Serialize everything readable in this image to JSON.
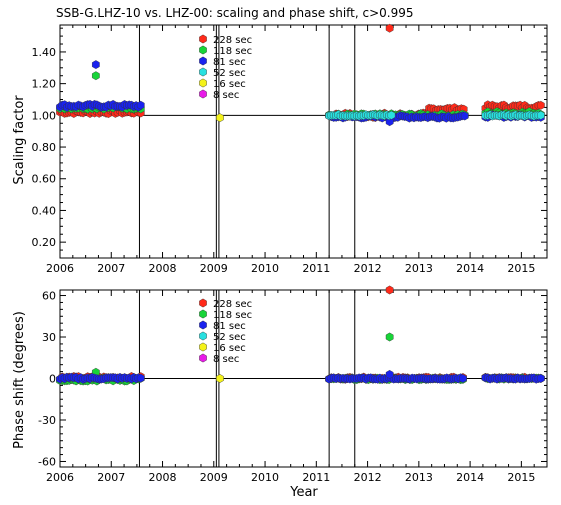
{
  "chart_data": [
    {
      "type": "scatter",
      "title": "SSB-G.LHZ-10 vs. LHZ-00: scaling and phase shift, c>0.995",
      "xlabel": "",
      "ylabel": "Scaling factor",
      "xlim": [
        2006,
        2015.5
      ],
      "ylim": [
        0.1,
        1.57
      ],
      "yticks": [
        "1.40",
        "1.20",
        "1.00",
        "0.80",
        "0.60",
        "0.40",
        "0.20"
      ],
      "ytick_values": [
        1.4,
        1.2,
        1.0,
        0.8,
        0.6,
        0.4,
        0.2
      ],
      "xticks": [
        "2006",
        "2007",
        "2008",
        "2009",
        "2010",
        "2011",
        "2012",
        "2013",
        "2014",
        "2015"
      ],
      "reference_line": 1.0,
      "vertical_lines": [
        2007.55,
        2009.05,
        2009.1,
        2011.25,
        2011.75
      ],
      "segments": [
        {
          "name": "228 sec",
          "color": "#ff2a1a",
          "ranges": [
            [
              2006.0,
              2007.6,
              1.02,
              0.01
            ],
            [
              2011.25,
              2012.4,
              1.0,
              0.015
            ],
            [
              2012.5,
              2013.2,
              1.0,
              0.015
            ],
            [
              2013.2,
              2013.9,
              1.04,
              0.01
            ],
            [
              2014.3,
              2015.4,
              1.055,
              0.012
            ]
          ],
          "points": [
            [
              2012.43,
              1.55
            ]
          ]
        },
        {
          "name": "118 sec",
          "color": "#18d438",
          "ranges": [
            [
              2006.0,
              2007.6,
              1.05,
              0.01
            ],
            [
              2011.25,
              2012.5,
              1.0,
              0.01
            ],
            [
              2012.5,
              2013.9,
              1.0,
              0.01
            ],
            [
              2014.3,
              2015.4,
              1.015,
              0.01
            ]
          ],
          "points": [
            [
              2006.7,
              1.25
            ]
          ]
        },
        {
          "name": "81 sec",
          "color": "#1a22ee",
          "ranges": [
            [
              2006.0,
              2007.6,
              1.06,
              0.01
            ],
            [
              2011.25,
              2012.5,
              0.99,
              0.008
            ],
            [
              2012.5,
              2013.9,
              0.99,
              0.008
            ],
            [
              2014.3,
              2015.4,
              0.995,
              0.008
            ]
          ],
          "points": [
            [
              2006.7,
              1.32
            ],
            [
              2012.43,
              0.96
            ]
          ]
        },
        {
          "name": "52 sec",
          "color": "#28e0e0",
          "ranges": [
            [
              2011.25,
              2012.5,
              1.0,
              0.005
            ],
            [
              2014.3,
              2015.4,
              1.0,
              0.005
            ]
          ],
          "points": []
        },
        {
          "name": "16 sec",
          "color": "#f4f21a",
          "ranges": [],
          "points": [
            [
              2009.12,
              0.985
            ]
          ]
        },
        {
          "name": "8 sec",
          "color": "#e81ae8",
          "ranges": [],
          "points": []
        }
      ]
    },
    {
      "type": "scatter",
      "title": "",
      "xlabel": "Year",
      "ylabel": "Phase shift (degrees)",
      "xlim": [
        2006,
        2015.5
      ],
      "ylim": [
        -64,
        64
      ],
      "yticks": [
        "60",
        "30",
        "0",
        "-30",
        "-60"
      ],
      "ytick_values": [
        60,
        30,
        0,
        -30,
        -60
      ],
      "xticks": [
        "2006",
        "2007",
        "2008",
        "2009",
        "2010",
        "2011",
        "2012",
        "2013",
        "2014",
        "2015"
      ],
      "reference_line": 0,
      "vertical_lines": [
        2007.55,
        2009.05,
        2009.1,
        2011.25,
        2011.75
      ],
      "segments": [
        {
          "name": "228 sec",
          "color": "#ff2a1a",
          "ranges": [
            [
              2006.0,
              2007.6,
              0.5,
              1.0
            ],
            [
              2011.25,
              2013.9,
              0.2,
              0.8
            ],
            [
              2014.3,
              2015.4,
              0.3,
              0.6
            ]
          ],
          "points": [
            [
              2012.43,
              64
            ]
          ]
        },
        {
          "name": "118 sec",
          "color": "#18d438",
          "ranges": [
            [
              2006.0,
              2007.6,
              -0.8,
              1.2
            ],
            [
              2011.25,
              2013.9,
              -0.3,
              0.6
            ],
            [
              2014.3,
              2015.4,
              0.0,
              0.5
            ]
          ],
          "points": [
            [
              2006.7,
              4.5
            ],
            [
              2012.43,
              30
            ]
          ]
        },
        {
          "name": "81 sec",
          "color": "#1a22ee",
          "ranges": [
            [
              2006.0,
              2007.6,
              0.2,
              0.8
            ],
            [
              2011.25,
              2013.9,
              0.0,
              0.5
            ],
            [
              2014.3,
              2015.4,
              0.0,
              0.5
            ]
          ],
          "points": [
            [
              2012.43,
              3
            ]
          ]
        },
        {
          "name": "52 sec",
          "color": "#28e0e0",
          "ranges": [],
          "points": []
        },
        {
          "name": "16 sec",
          "color": "#f4f21a",
          "ranges": [],
          "points": [
            [
              2009.12,
              0
            ]
          ]
        },
        {
          "name": "8 sec",
          "color": "#e81ae8",
          "ranges": [],
          "points": []
        }
      ]
    }
  ],
  "legend": [
    {
      "label": "228 sec",
      "color": "#ff2a1a"
    },
    {
      "label": "118 sec",
      "color": "#18d438"
    },
    {
      "label": "81 sec",
      "color": "#1a22ee"
    },
    {
      "label": "52 sec",
      "color": "#28e0e0"
    },
    {
      "label": "16 sec",
      "color": "#f4f21a"
    },
    {
      "label": "8 sec",
      "color": "#e81ae8"
    }
  ]
}
